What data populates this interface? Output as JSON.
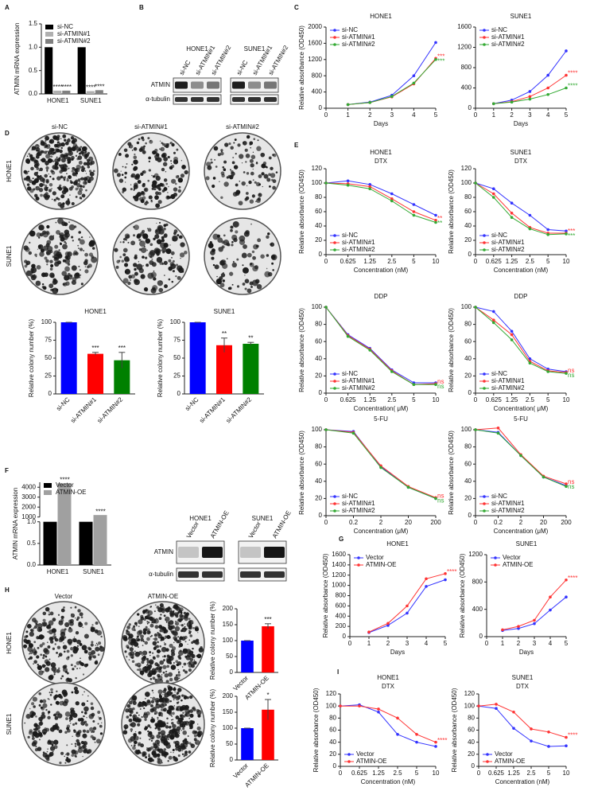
{
  "panel_labels": [
    "A",
    "B",
    "C",
    "D",
    "E",
    "F",
    "G",
    "H",
    "I"
  ],
  "blot_b": {
    "cells": [
      "HONE1",
      "SUNE1"
    ],
    "lanes": [
      "si-NC",
      "si-ATMIN#1",
      "si-ATMIN#2"
    ],
    "proteins": [
      "ATMIN",
      "α-tubulin"
    ]
  },
  "plates_d": {
    "columns": [
      "si-NC",
      "si-ATMIN#1",
      "si-ATMIN#2"
    ],
    "rows": [
      "HONE1",
      "SUNE1"
    ]
  },
  "blot_f": {
    "cells": [
      "HONE1",
      "SUNE1"
    ],
    "lanes": [
      "Vector",
      "ATMIN-OE"
    ],
    "proteins": [
      "ATMIN",
      "α-tubulin"
    ]
  },
  "plates_h": {
    "columns": [
      "Vector",
      "ATMIN-OE"
    ],
    "rows": [
      "HONE1",
      "SUNE1"
    ]
  },
  "chart_data": [
    {
      "type": "bar",
      "ylabel": "ATMIN mRNA expression",
      "categories": [
        "HONE1",
        "SUNE1"
      ],
      "series": [
        {
          "name": "si-NC",
          "color": "#000000",
          "values": [
            1,
            1
          ]
        },
        {
          "name": "si-ATMIN#1",
          "color": "#b0b0b0",
          "values": [
            0.07,
            0.06
          ],
          "sig": [
            "****",
            "****"
          ]
        },
        {
          "name": "si-ATMIN#2",
          "color": "#808080",
          "values": [
            0.07,
            0.08
          ],
          "sig": [
            "****",
            "****"
          ]
        }
      ],
      "ylim": [
        0,
        1.5
      ],
      "yticks": [
        {
          "value": 0,
          "label": "0.0"
        },
        {
          "value": 0.5,
          "label": "0.5"
        },
        {
          "value": 1,
          "label": "1.0"
        },
        {
          "value": 1.5,
          "label": "1.5"
        }
      ],
      "legend": "upper left"
    },
    {
      "type": "line",
      "title": "HONE1",
      "ylabel": "Relative absorbance (OD450)",
      "xlabel": "Days",
      "x": [
        1,
        2,
        3,
        4,
        5
      ],
      "xlim": [
        0,
        5
      ],
      "xticks": [
        0,
        1,
        2,
        3,
        4,
        5
      ],
      "ylim": [
        0,
        2000
      ],
      "yticks": [
        0,
        400,
        800,
        1200,
        1600,
        2000
      ],
      "legend": "upper left",
      "series": [
        {
          "name": "si-NC",
          "color": "#3333ff",
          "values": [
            90,
            150,
            320,
            800,
            1620
          ]
        },
        {
          "name": "si-ATMIN#1",
          "color": "#ff3333",
          "values": [
            90,
            140,
            280,
            600,
            1230
          ],
          "sig": "***"
        },
        {
          "name": "si-ATMIN#2",
          "color": "#33aa33",
          "values": [
            90,
            140,
            290,
            620,
            1200
          ],
          "sig": "***"
        }
      ]
    },
    {
      "type": "line",
      "title": "SUNE1",
      "xlabel": "Days",
      "x": [
        1,
        2,
        3,
        4,
        5
      ],
      "xlim": [
        0,
        5
      ],
      "xticks": [
        0,
        1,
        2,
        3,
        4,
        5
      ],
      "ylim": [
        0,
        1600
      ],
      "yticks": [
        0,
        400,
        800,
        1200,
        1600
      ],
      "legend": "upper left",
      "series": [
        {
          "name": "si-NC",
          "color": "#3333ff",
          "values": [
            90,
            160,
            330,
            650,
            1130
          ]
        },
        {
          "name": "si-ATMIN#1",
          "color": "#ff3333",
          "values": [
            90,
            130,
            230,
            400,
            650
          ],
          "sig": "****"
        },
        {
          "name": "si-ATMIN#2",
          "color": "#33aa33",
          "values": [
            90,
            120,
            180,
            270,
            400
          ],
          "sig": "****"
        }
      ]
    },
    {
      "type": "line",
      "title": "HONE1",
      "subtitle": "DTX",
      "ylabel": "Relative absorbance (OD450)",
      "xlabel": "Concentration (nM)",
      "categories": [
        "0",
        "0.625",
        "1.25",
        "2.5",
        "5",
        "10"
      ],
      "ylim": [
        0,
        120
      ],
      "yticks": [
        0,
        20,
        40,
        60,
        80,
        100,
        120
      ],
      "legend": "lower left",
      "series": [
        {
          "name": "si-NC",
          "color": "#3333ff",
          "values": [
            100,
            103,
            98,
            85,
            70,
            55
          ]
        },
        {
          "name": "si-ATMIN#1",
          "color": "#ff3333",
          "values": [
            100,
            99,
            95,
            78,
            60,
            48
          ],
          "sig": "**"
        },
        {
          "name": "si-ATMIN#2",
          "color": "#33aa33",
          "values": [
            100,
            97,
            92,
            75,
            55,
            45
          ],
          "sig": "**"
        }
      ]
    },
    {
      "type": "line",
      "title": "SUNE1",
      "subtitle": "DTX",
      "ylabel": "Relative absorbance (OD450)",
      "xlabel": "Concentration (nM)",
      "categories": [
        "0",
        "0.625",
        "1.25",
        "2.5",
        "5",
        "10"
      ],
      "ylim": [
        0,
        120
      ],
      "yticks": [
        0,
        20,
        40,
        60,
        80,
        100,
        120
      ],
      "legend": "lower left",
      "series": [
        {
          "name": "si-NC",
          "color": "#3333ff",
          "values": [
            100,
            92,
            72,
            55,
            35,
            33
          ]
        },
        {
          "name": "si-ATMIN#1",
          "color": "#ff3333",
          "values": [
            100,
            85,
            58,
            38,
            30,
            30
          ],
          "sig": "***"
        },
        {
          "name": "si-ATMIN#2",
          "color": "#33aa33",
          "values": [
            100,
            80,
            52,
            36,
            28,
            29
          ],
          "sig": "***"
        }
      ]
    },
    {
      "type": "line",
      "title": "DDP",
      "ylabel": "Relative absorbance (OD450)",
      "xlabel": "Concentration( μM)",
      "categories": [
        "0",
        "0.625",
        "1.25",
        "2.5",
        "5",
        "10"
      ],
      "ylim": [
        0,
        100
      ],
      "yticks": [
        0,
        20,
        40,
        60,
        80,
        100
      ],
      "legend": "lower left",
      "series": [
        {
          "name": "si-NC",
          "color": "#3333ff",
          "values": [
            100,
            68,
            52,
            27,
            12,
            12
          ]
        },
        {
          "name": "si-ATMIN#1",
          "color": "#ff3333",
          "values": [
            100,
            67,
            51,
            26,
            10,
            11
          ],
          "sig": "ns"
        },
        {
          "name": "si-ATMIN#2",
          "color": "#33aa33",
          "values": [
            100,
            66,
            50,
            25,
            10,
            10
          ],
          "sig": "ns"
        }
      ]
    },
    {
      "type": "line",
      "title": "DDP",
      "ylabel": "Relative absorbance (OD450)",
      "xlabel": "Concentration( μM)",
      "categories": [
        "0",
        "0.625",
        "1.25",
        "2.5",
        "5",
        "10"
      ],
      "ylim": [
        0,
        100
      ],
      "yticks": [
        0,
        20,
        40,
        60,
        80,
        100
      ],
      "legend": "lower left",
      "series": [
        {
          "name": "si-NC",
          "color": "#3333ff",
          "values": [
            100,
            95,
            72,
            40,
            28,
            25
          ]
        },
        {
          "name": "si-ATMIN#1",
          "color": "#ff3333",
          "values": [
            100,
            85,
            68,
            37,
            26,
            24
          ],
          "sig": "ns"
        },
        {
          "name": "si-ATMIN#2",
          "color": "#33aa33",
          "values": [
            100,
            82,
            62,
            35,
            25,
            23
          ],
          "sig": "ns"
        }
      ]
    },
    {
      "type": "line",
      "title": "5-FU",
      "ylabel": "Relative absorbance (OD450)",
      "xlabel": "Concentration (μM)",
      "categories": [
        "0",
        "0.2",
        "2",
        "20",
        "200"
      ],
      "ylim": [
        0,
        100
      ],
      "yticks": [
        0,
        20,
        40,
        60,
        80,
        100
      ],
      "legend": "lower left",
      "series": [
        {
          "name": "si-NC",
          "color": "#3333ff",
          "values": [
            100,
            98,
            57,
            33,
            20
          ]
        },
        {
          "name": "si-ATMIN#1",
          "color": "#ff3333",
          "values": [
            100,
            97,
            58,
            34,
            21
          ],
          "sig": "ns"
        },
        {
          "name": "si-ATMIN#2",
          "color": "#33aa33",
          "values": [
            100,
            96,
            56,
            33,
            20
          ],
          "sig": "ns"
        }
      ]
    },
    {
      "type": "line",
      "title": "5-FU",
      "ylabel": "Relative absorbance (OD450)",
      "xlabel": "Concentration (μM)",
      "categories": [
        "0",
        "0.2",
        "2",
        "20",
        "200"
      ],
      "ylim": [
        0,
        100
      ],
      "yticks": [
        0,
        20,
        40,
        60,
        80,
        100
      ],
      "legend": "lower left",
      "series": [
        {
          "name": "si-NC",
          "color": "#3333ff",
          "values": [
            100,
            97,
            70,
            45,
            35
          ]
        },
        {
          "name": "si-ATMIN#1",
          "color": "#ff3333",
          "values": [
            100,
            102,
            71,
            46,
            37
          ],
          "sig": "ns"
        },
        {
          "name": "si-ATMIN#2",
          "color": "#33aa33",
          "values": [
            100,
            96,
            70,
            45,
            34
          ],
          "sig": "ns"
        }
      ]
    },
    {
      "type": "bar",
      "title": "HONE1",
      "ylabel": "Relative colony number (%)",
      "categories": [
        "si-NC",
        "si-ATMIN#1",
        "si-ATMIN#2"
      ],
      "values": [
        100,
        56,
        47
      ],
      "errors": [
        0,
        2,
        11
      ],
      "colors": [
        "#0000ff",
        "#ff0000",
        "#008000"
      ],
      "sig": [
        null,
        "***",
        "***"
      ],
      "ylim": [
        0,
        100
      ],
      "yticks": [
        0,
        25,
        50,
        75,
        100
      ],
      "xlabel_rotation": -45
    },
    {
      "type": "bar",
      "title": "SUNE1",
      "ylabel": "Relative colony number (%)",
      "categories": [
        "si-NC",
        "si-ATMIN#1",
        "si-ATMIN#2"
      ],
      "values": [
        100,
        68,
        70
      ],
      "errors": [
        0,
        10,
        2
      ],
      "colors": [
        "#0000ff",
        "#ff0000",
        "#008000"
      ],
      "sig": [
        null,
        "**",
        "**"
      ],
      "ylim": [
        0,
        100
      ],
      "yticks": [
        0,
        25,
        50,
        75,
        100
      ],
      "xlabel_rotation": -45
    },
    {
      "type": "bar",
      "ylabel": "ATMIN mRNA expression",
      "categories": [
        "HONE1",
        "SUNE1"
      ],
      "series": [
        {
          "name": "Vector",
          "color": "#000000",
          "values": [
            1,
            1
          ]
        },
        {
          "name": "ATMIN-OE",
          "color": "#a0a0a0",
          "values": [
            4400,
            1200
          ],
          "sig": [
            "****",
            "****"
          ]
        }
      ],
      "ylim": [
        0,
        4500
      ],
      "axis_break": [
        1,
        1000
      ],
      "yticks": [
        {
          "value": 0,
          "label": "0.0"
        },
        {
          "value": 0.5,
          "label": "0.5"
        },
        {
          "value": 1,
          "label": "1.0"
        },
        1000,
        2000,
        3000,
        4000
      ],
      "legend": "upper left"
    },
    {
      "type": "line",
      "title": "HONE1",
      "ylabel": "Relative absorbance (OD450)",
      "xlabel": "Days",
      "x": [
        1,
        2,
        3,
        4,
        5
      ],
      "xlim": [
        0,
        5
      ],
      "xticks": [
        0,
        1,
        2,
        3,
        4,
        5
      ],
      "ylim": [
        0,
        1600
      ],
      "yticks": [
        0,
        200,
        400,
        600,
        800,
        1000,
        1200,
        1400,
        1600
      ],
      "legend": "upper left",
      "series": [
        {
          "name": "Vector",
          "color": "#3333ff",
          "values": [
            80,
            220,
            460,
            980,
            1110
          ]
        },
        {
          "name": "ATMIN-OE",
          "color": "#ff3333",
          "values": [
            90,
            260,
            600,
            1130,
            1230
          ],
          "sig": "****"
        }
      ]
    },
    {
      "type": "line",
      "title": "SUNE1",
      "ylabel": "Relative absorbance (OD450)",
      "xlabel": "Days",
      "x": [
        1,
        2,
        3,
        4,
        5
      ],
      "xlim": [
        0,
        5
      ],
      "xticks": [
        0,
        1,
        2,
        3,
        4,
        5
      ],
      "ylim": [
        0,
        1200
      ],
      "yticks": [
        0,
        400,
        800,
        1200
      ],
      "legend": "upper left",
      "series": [
        {
          "name": "Vector",
          "color": "#3333ff",
          "values": [
            90,
            120,
            190,
            390,
            580
          ]
        },
        {
          "name": "ATMIN-OE",
          "color": "#ff3333",
          "values": [
            100,
            150,
            240,
            580,
            830
          ],
          "sig": "****"
        }
      ]
    },
    {
      "type": "bar",
      "ylabel": "Relative colony number (%)",
      "categories": [
        "Vector",
        "ATMIN-OE"
      ],
      "values": [
        100,
        145
      ],
      "errors": [
        0,
        8
      ],
      "colors": [
        "#0000ff",
        "#ff0000"
      ],
      "sig": [
        null,
        "***"
      ],
      "ylim": [
        0,
        200
      ],
      "yticks": [
        0,
        50,
        100,
        150,
        200
      ],
      "xlabel_rotation": -45
    },
    {
      "type": "bar",
      "ylabel": "Relative colony number (%)",
      "categories": [
        "Vector",
        "ATMIN-OE"
      ],
      "values": [
        100,
        158
      ],
      "errors": [
        0,
        32
      ],
      "colors": [
        "#0000ff",
        "#ff0000"
      ],
      "sig": [
        null,
        "*"
      ],
      "ylim": [
        0,
        200
      ],
      "yticks": [
        0,
        50,
        100,
        150,
        200
      ],
      "xlabel_rotation": -45
    },
    {
      "type": "line",
      "title": "HONE1",
      "subtitle": "DTX",
      "ylabel": "Relative absorbance (OD450)",
      "xlabel": "Concentration (nM)",
      "categories": [
        "0",
        "0.625",
        "1.25",
        "2.5",
        "5",
        "10"
      ],
      "ylim": [
        0,
        120
      ],
      "yticks": [
        0,
        20,
        40,
        60,
        80,
        100,
        120
      ],
      "legend": "lower left",
      "series": [
        {
          "name": "Vector",
          "color": "#3333ff",
          "values": [
            100,
            102,
            90,
            53,
            40,
            33
          ]
        },
        {
          "name": "ATMIN-OE",
          "color": "#ff3333",
          "values": [
            100,
            100,
            95,
            80,
            53,
            40
          ],
          "sig": "****"
        }
      ]
    },
    {
      "type": "line",
      "title": "SUNE1",
      "subtitle": "DTX",
      "ylabel": "Relative absorbance (OD450)",
      "xlabel": "Concentration (nM)",
      "categories": [
        "0",
        "0.625",
        "1.25",
        "2.5",
        "5",
        "10"
      ],
      "ylim": [
        0,
        120
      ],
      "yticks": [
        0,
        20,
        40,
        60,
        80,
        100,
        120
      ],
      "legend": "lower left",
      "series": [
        {
          "name": "Vector",
          "color": "#3333ff",
          "values": [
            100,
            96,
            63,
            42,
            33,
            34
          ]
        },
        {
          "name": "ATMIN-OE",
          "color": "#ff3333",
          "values": [
            100,
            103,
            90,
            62,
            57,
            48
          ],
          "sig": "****"
        }
      ]
    }
  ]
}
